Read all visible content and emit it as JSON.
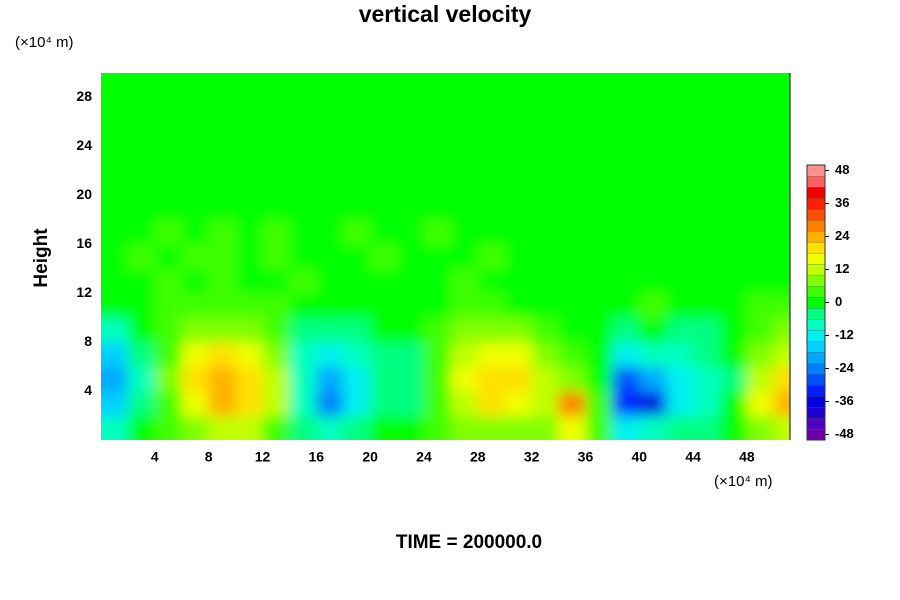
{
  "chart_data": {
    "type": "contour",
    "title": "vertical velocity",
    "ylabel": "Height",
    "y_unit": "(×10⁴ m)",
    "x_unit": "(×10⁴ m)",
    "footer": "TIME = 200000.0",
    "xlim": [
      0,
      51.2
    ],
    "ylim": [
      0,
      30
    ],
    "xticks": [
      4,
      8,
      12,
      16,
      20,
      24,
      28,
      32,
      36,
      40,
      44,
      48
    ],
    "yticks": [
      4,
      8,
      12,
      16,
      20,
      24,
      28
    ],
    "clim": [
      -50,
      50
    ],
    "cticks": [
      -48,
      -36,
      -24,
      -12,
      0,
      12,
      24,
      36,
      48
    ],
    "colors": [
      "#6a00a8",
      "#5000c0",
      "#2000d0",
      "#0000e0",
      "#0020ff",
      "#0050ff",
      "#0080ff",
      "#00a8ff",
      "#00d0ff",
      "#00f0f0",
      "#00ffc0",
      "#00ff80",
      "#00ff00",
      "#40ff00",
      "#80ff00",
      "#c0ff00",
      "#f0ff00",
      "#ffe000",
      "#ffb000",
      "#ff8000",
      "#ff5000",
      "#ff2000",
      "#f00000",
      "#ff6060",
      "#ff9090"
    ],
    "x": [
      1,
      3,
      5,
      7,
      9,
      11,
      13,
      15,
      17,
      19,
      21,
      23,
      25,
      27,
      29,
      31,
      33,
      35,
      37,
      39,
      41,
      43,
      45,
      47,
      49,
      51
    ],
    "y": [
      1,
      3,
      5,
      7,
      9,
      11,
      13,
      15,
      17,
      19,
      21,
      23,
      25,
      27,
      29
    ],
    "z": [
      [
        -8,
        -2,
        2,
        8,
        10,
        10,
        4,
        -4,
        -8,
        -4,
        0,
        -2,
        2,
        6,
        8,
        6,
        8,
        14,
        2,
        -14,
        -10,
        -6,
        -4,
        0,
        8,
        12
      ],
      [
        -16,
        -6,
        4,
        16,
        24,
        20,
        10,
        -10,
        -24,
        -14,
        -4,
        -4,
        4,
        12,
        18,
        16,
        10,
        26,
        4,
        -34,
        -36,
        -12,
        -8,
        -2,
        14,
        24
      ],
      [
        -22,
        -8,
        6,
        18,
        22,
        18,
        10,
        -10,
        -22,
        -12,
        -4,
        -6,
        4,
        14,
        18,
        20,
        10,
        6,
        -2,
        -28,
        -22,
        -12,
        -10,
        -4,
        12,
        18
      ],
      [
        -18,
        -6,
        4,
        14,
        18,
        14,
        6,
        -8,
        -12,
        -8,
        -4,
        -4,
        4,
        12,
        14,
        14,
        6,
        2,
        -2,
        -12,
        -10,
        -8,
        -6,
        -2,
        8,
        12
      ],
      [
        -8,
        -2,
        2,
        6,
        8,
        6,
        2,
        -4,
        -4,
        -4,
        -2,
        0,
        2,
        6,
        8,
        6,
        2,
        0,
        -2,
        -4,
        -2,
        -4,
        -4,
        -2,
        2,
        6
      ],
      [
        -2,
        0,
        2,
        2,
        2,
        4,
        2,
        0,
        -2,
        0,
        -2,
        0,
        0,
        2,
        2,
        0,
        -2,
        0,
        0,
        -2,
        2,
        0,
        -2,
        0,
        2,
        2
      ],
      [
        0,
        1,
        2,
        1,
        2,
        1,
        0,
        2,
        0,
        1,
        0,
        1,
        0,
        2,
        0,
        0,
        1,
        0,
        0,
        0,
        0,
        1,
        0,
        0,
        1,
        1
      ],
      [
        1,
        2,
        1,
        3,
        2,
        1,
        2,
        1,
        0,
        0,
        2,
        0,
        0,
        1,
        2,
        0,
        1,
        0,
        0,
        -2,
        0,
        1,
        0,
        1,
        0,
        0
      ],
      [
        1,
        1,
        2,
        1,
        3,
        1,
        2,
        1,
        1,
        3,
        1,
        1,
        2,
        1,
        1,
        0,
        1,
        1,
        0,
        0,
        1,
        1,
        0,
        0,
        1,
        1
      ],
      [
        1,
        1,
        1,
        1,
        1,
        1,
        1,
        1,
        1,
        1,
        1,
        1,
        1,
        1,
        1,
        1,
        1,
        1,
        1,
        1,
        1,
        0,
        1,
        0,
        1,
        1
      ],
      [
        1,
        1,
        1,
        1,
        1,
        1,
        1,
        1,
        1,
        1,
        1,
        1,
        1,
        1,
        1,
        1,
        1,
        1,
        1,
        1,
        1,
        1,
        1,
        1,
        1,
        1
      ],
      [
        1,
        1,
        1,
        1,
        1,
        1,
        1,
        1,
        1,
        1,
        1,
        1,
        1,
        1,
        1,
        1,
        1,
        1,
        1,
        1,
        1,
        1,
        1,
        1,
        1,
        1
      ],
      [
        1,
        1,
        1,
        1,
        1,
        1,
        1,
        1,
        1,
        1,
        1,
        1,
        1,
        1,
        1,
        1,
        1,
        1,
        1,
        1,
        1,
        1,
        1,
        1,
        1,
        1
      ],
      [
        1,
        1,
        1,
        1,
        1,
        1,
        1,
        1,
        1,
        1,
        1,
        1,
        1,
        1,
        1,
        1,
        1,
        1,
        1,
        1,
        1,
        1,
        1,
        1,
        1,
        1
      ],
      [
        1,
        1,
        1,
        1,
        1,
        1,
        1,
        1,
        1,
        1,
        1,
        1,
        1,
        1,
        1,
        1,
        1,
        1,
        1,
        1,
        1,
        1,
        1,
        1,
        1,
        1
      ]
    ]
  }
}
